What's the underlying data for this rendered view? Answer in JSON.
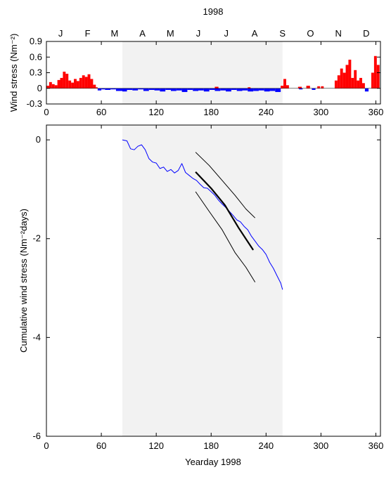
{
  "year_label": "1998",
  "months": [
    "J",
    "F",
    "M",
    "A",
    "M",
    "J",
    "J",
    "A",
    "S",
    "O",
    "N",
    "D"
  ],
  "colors": {
    "positive": "#ff0000",
    "negative": "#0000ff",
    "shade": "#f2f2f2",
    "cumulative": "#0000ff",
    "fit": "#000000"
  },
  "chart_data": [
    {
      "type": "bar",
      "ylabel": "Wind stress (Nm⁻²)",
      "xlim": [
        0,
        365
      ],
      "ylim": [
        -0.3,
        0.9
      ],
      "xticks": [
        0,
        60,
        120,
        180,
        240,
        300,
        360
      ],
      "yticks": [
        -0.3,
        0,
        0.3,
        0.6,
        0.9
      ],
      "shaded_region": [
        83,
        258
      ],
      "month_starts": [
        0,
        31,
        59,
        90,
        120,
        151,
        181,
        212,
        243,
        273,
        304,
        334
      ],
      "series": [
        {
          "color": "positive",
          "segments": [
            [
              0,
              3,
              0.05
            ],
            [
              3,
              6,
              0.12
            ],
            [
              6,
              9,
              0.08
            ],
            [
              9,
              12,
              0.06
            ],
            [
              12,
              15,
              0.16
            ],
            [
              15,
              18,
              0.2
            ],
            [
              18,
              21,
              0.32
            ],
            [
              21,
              24,
              0.28
            ],
            [
              24,
              27,
              0.15
            ],
            [
              27,
              30,
              0.11
            ],
            [
              30,
              33,
              0.18
            ],
            [
              33,
              36,
              0.14
            ],
            [
              36,
              39,
              0.2
            ],
            [
              39,
              42,
              0.25
            ],
            [
              42,
              45,
              0.22
            ],
            [
              45,
              48,
              0.27
            ],
            [
              48,
              51,
              0.18
            ],
            [
              51,
              54,
              0.07
            ],
            [
              54,
              56,
              0.02
            ]
          ]
        },
        {
          "color": "negative",
          "segments": [
            [
              56,
              60,
              -0.04
            ],
            [
              60,
              64,
              -0.02
            ],
            [
              64,
              70,
              -0.03
            ],
            [
              70,
              76,
              -0.02
            ],
            [
              76,
              83,
              -0.05
            ],
            [
              83,
              88,
              -0.06
            ],
            [
              88,
              94,
              -0.03
            ],
            [
              94,
              100,
              -0.04
            ],
            [
              100,
              106,
              -0.02
            ],
            [
              106,
              112,
              -0.05
            ],
            [
              112,
              118,
              -0.03
            ],
            [
              118,
              124,
              -0.04
            ],
            [
              124,
              130,
              -0.06
            ],
            [
              130,
              136,
              -0.03
            ],
            [
              136,
              142,
              -0.05
            ],
            [
              142,
              148,
              -0.04
            ],
            [
              148,
              154,
              -0.07
            ],
            [
              154,
              160,
              -0.03
            ],
            [
              160,
              166,
              -0.05
            ],
            [
              166,
              172,
              -0.04
            ],
            [
              172,
              178,
              -0.06
            ],
            [
              178,
              184,
              -0.03
            ],
            [
              184,
              190,
              -0.05
            ],
            [
              190,
              196,
              -0.04
            ],
            [
              196,
              202,
              -0.06
            ],
            [
              202,
              208,
              -0.03
            ],
            [
              208,
              214,
              -0.05
            ],
            [
              214,
              220,
              -0.04
            ],
            [
              220,
              226,
              -0.06
            ],
            [
              226,
              232,
              -0.05
            ],
            [
              232,
              238,
              -0.04
            ],
            [
              238,
              244,
              -0.06
            ],
            [
              244,
              250,
              -0.05
            ],
            [
              250,
              256,
              -0.07
            ]
          ]
        },
        {
          "color": "positive",
          "segments": [
            [
              184,
              188,
              0.03
            ],
            [
              220,
              223,
              0.02
            ],
            [
              256,
              259,
              0.05
            ],
            [
              259,
              262,
              0.18
            ],
            [
              262,
              265,
              0.06
            ],
            [
              275,
              279,
              0.03
            ],
            [
              284,
              288,
              0.05
            ],
            [
              296,
              299,
              0.04
            ],
            [
              300,
              303,
              0.04
            ],
            [
              315,
              318,
              0.15
            ],
            [
              318,
              321,
              0.25
            ],
            [
              321,
              324,
              0.38
            ],
            [
              324,
              327,
              0.3
            ],
            [
              327,
              330,
              0.45
            ],
            [
              330,
              333,
              0.55
            ],
            [
              333,
              336,
              0.2
            ],
            [
              336,
              339,
              0.35
            ],
            [
              339,
              342,
              0.15
            ],
            [
              342,
              345,
              0.2
            ],
            [
              345,
              348,
              0.1
            ],
            [
              355,
              358,
              0.3
            ],
            [
              358,
              361,
              0.62
            ],
            [
              361,
              364,
              0.45
            ]
          ]
        },
        {
          "color": "negative",
          "segments": [
            [
              276,
              280,
              -0.02
            ],
            [
              290,
              294,
              -0.03
            ],
            [
              348,
              352,
              -0.06
            ]
          ]
        }
      ]
    },
    {
      "type": "line",
      "xlabel": "Yearday 1998",
      "ylabel": "Cumulative wind stress (Nm⁻²days)",
      "xlim": [
        0,
        365
      ],
      "ylim": [
        -6,
        0.3
      ],
      "xticks": [
        0,
        60,
        120,
        180,
        240,
        300,
        360
      ],
      "yticks": [
        0,
        -2,
        -4,
        -6
      ],
      "shaded_region": [
        83,
        258
      ],
      "series": [
        {
          "name": "",
          "color": "cumulative",
          "width": 1,
          "x": [
            83,
            88,
            92,
            96,
            100,
            104,
            108,
            112,
            116,
            120,
            124,
            128,
            132,
            136,
            140,
            144,
            148,
            152,
            156,
            160,
            164,
            168,
            172,
            176,
            180,
            184,
            188,
            192,
            196,
            200,
            204,
            208,
            212,
            216,
            220,
            224,
            228,
            232,
            236,
            240,
            244,
            248,
            252,
            256,
            258
          ],
          "y": [
            0,
            -0.02,
            -0.18,
            -0.2,
            -0.13,
            -0.1,
            -0.2,
            -0.38,
            -0.45,
            -0.47,
            -0.58,
            -0.55,
            -0.64,
            -0.6,
            -0.67,
            -0.62,
            -0.48,
            -0.66,
            -0.72,
            -0.78,
            -0.82,
            -0.9,
            -0.97,
            -0.98,
            -1.05,
            -1.12,
            -1.22,
            -1.3,
            -1.37,
            -1.45,
            -1.53,
            -1.62,
            -1.66,
            -1.75,
            -1.82,
            -1.95,
            -2.05,
            -2.15,
            -2.22,
            -2.32,
            -2.48,
            -2.6,
            -2.75,
            -2.9,
            -3.03
          ]
        },
        {
          "name": "",
          "color": "fit",
          "width": 2.2,
          "x": [
            163,
            180,
            195,
            210,
            226
          ],
          "y": [
            -0.65,
            -0.98,
            -1.32,
            -1.78,
            -2.23
          ]
        },
        {
          "name": "",
          "color": "fit",
          "width": 1,
          "x": [
            163,
            178,
            192,
            206,
            218,
            228
          ],
          "y": [
            -0.25,
            -0.52,
            -0.82,
            -1.12,
            -1.4,
            -1.58
          ]
        },
        {
          "name": "",
          "color": "fit",
          "width": 1,
          "x": [
            163,
            178,
            192,
            206,
            218,
            228
          ],
          "y": [
            -1.05,
            -1.45,
            -1.82,
            -2.28,
            -2.58,
            -2.88
          ]
        }
      ]
    }
  ]
}
